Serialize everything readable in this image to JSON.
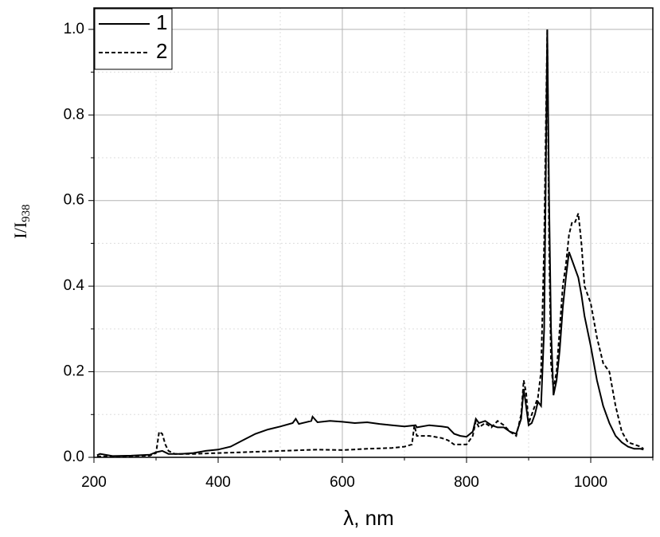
{
  "chart_data": {
    "type": "line",
    "xlabel": "λ, nm",
    "ylabel": "I/I",
    "ylabel_sub": "938",
    "xlim": [
      200,
      1100
    ],
    "ylim": [
      0,
      1.05
    ],
    "xticks": [
      200,
      400,
      600,
      800,
      1000
    ],
    "yticks": [
      {
        "value": 0,
        "label": "0.0"
      },
      0.2,
      0.4,
      0.6,
      0.8,
      {
        "value": 1,
        "label": "1.0"
      }
    ],
    "xminor": [
      300,
      500,
      700,
      900,
      1100
    ],
    "yminor": [
      0.1,
      0.3,
      0.5,
      0.7,
      0.9
    ],
    "grid": true,
    "legend": "upper left",
    "series": [
      {
        "name": "1",
        "color": "#000000",
        "dash": "solid",
        "x": [
          205,
          210,
          230,
          260,
          290,
          300,
          310,
          320,
          340,
          360,
          380,
          400,
          420,
          440,
          460,
          480,
          500,
          520,
          525,
          530,
          550,
          552,
          560,
          580,
          600,
          620,
          640,
          660,
          680,
          700,
          718,
          720,
          740,
          760,
          770,
          780,
          790,
          800,
          810,
          815,
          820,
          830,
          840,
          850,
          860,
          870,
          880,
          888,
          892,
          895,
          900,
          905,
          910,
          915,
          920,
          925,
          928,
          930,
          933,
          936,
          940,
          945,
          950,
          955,
          960,
          965,
          970,
          975,
          980,
          985,
          990,
          1000,
          1010,
          1020,
          1030,
          1040,
          1050,
          1060,
          1070,
          1080,
          1085
        ],
        "values": [
          0.005,
          0.008,
          0.003,
          0.004,
          0.006,
          0.012,
          0.015,
          0.008,
          0.008,
          0.01,
          0.015,
          0.018,
          0.025,
          0.04,
          0.055,
          0.065,
          0.072,
          0.08,
          0.09,
          0.078,
          0.085,
          0.095,
          0.082,
          0.085,
          0.083,
          0.08,
          0.082,
          0.078,
          0.075,
          0.072,
          0.075,
          0.07,
          0.075,
          0.072,
          0.07,
          0.055,
          0.05,
          0.048,
          0.06,
          0.09,
          0.08,
          0.085,
          0.075,
          0.07,
          0.07,
          0.06,
          0.055,
          0.09,
          0.16,
          0.13,
          0.075,
          0.08,
          0.1,
          0.13,
          0.12,
          0.3,
          0.7,
          1.0,
          0.6,
          0.3,
          0.145,
          0.18,
          0.25,
          0.35,
          0.42,
          0.48,
          0.46,
          0.44,
          0.42,
          0.38,
          0.33,
          0.26,
          0.18,
          0.12,
          0.08,
          0.05,
          0.035,
          0.025,
          0.02,
          0.02,
          0.018
        ]
      },
      {
        "name": "2",
        "color": "#000000",
        "dash": "dashed",
        "x": [
          205,
          230,
          260,
          290,
          300,
          305,
          310,
          315,
          320,
          330,
          360,
          400,
          440,
          480,
          520,
          560,
          600,
          640,
          680,
          700,
          712,
          716,
          720,
          740,
          760,
          770,
          780,
          800,
          810,
          815,
          820,
          830,
          840,
          850,
          860,
          870,
          880,
          888,
          892,
          896,
          900,
          905,
          910,
          915,
          920,
          925,
          928,
          930,
          933,
          936,
          940,
          945,
          950,
          955,
          960,
          965,
          970,
          975,
          980,
          985,
          990,
          1000,
          1010,
          1020,
          1030,
          1040,
          1050,
          1060,
          1070,
          1080,
          1085
        ],
        "values": [
          0.002,
          0.002,
          0.003,
          0.004,
          0.01,
          0.06,
          0.055,
          0.03,
          0.015,
          0.008,
          0.008,
          0.01,
          0.012,
          0.014,
          0.016,
          0.018,
          0.017,
          0.02,
          0.022,
          0.025,
          0.03,
          0.075,
          0.05,
          0.05,
          0.045,
          0.04,
          0.03,
          0.03,
          0.05,
          0.085,
          0.07,
          0.08,
          0.07,
          0.085,
          0.075,
          0.06,
          0.05,
          0.1,
          0.18,
          0.15,
          0.08,
          0.1,
          0.12,
          0.14,
          0.2,
          0.5,
          0.8,
          1.0,
          0.5,
          0.22,
          0.16,
          0.2,
          0.3,
          0.4,
          0.45,
          0.52,
          0.55,
          0.55,
          0.57,
          0.5,
          0.4,
          0.36,
          0.28,
          0.22,
          0.2,
          0.12,
          0.06,
          0.035,
          0.03,
          0.025,
          0.02
        ]
      }
    ]
  }
}
